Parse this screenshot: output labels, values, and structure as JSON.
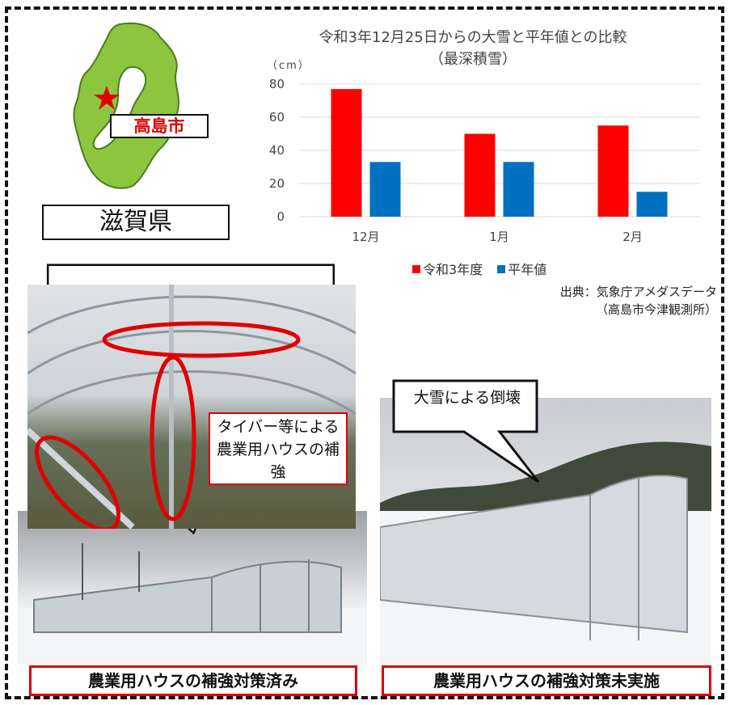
{
  "map": {
    "prefecture_label": "滋賀県",
    "city_label": "高島市",
    "colors": {
      "land": "#8cc63f",
      "star": "#e00000",
      "lake": "#ffffff"
    }
  },
  "chart_data": {
    "type": "bar",
    "title": "令和3年12月25日からの大雪と平年値との比較",
    "subtitle": "（最深積雪）",
    "ylabel": "（cm）",
    "categories": [
      "12月",
      "1月",
      "2月"
    ],
    "series": [
      {
        "name": "令和3年度",
        "values": [
          77,
          50,
          55
        ],
        "color": "#ff0000"
      },
      {
        "name": "平年値",
        "values": [
          33,
          33,
          15
        ],
        "color": "#0070c0"
      }
    ],
    "ylim": [
      0,
      80
    ],
    "yticks": [
      "0",
      "20",
      "40",
      "60",
      "80"
    ],
    "grid": true,
    "legend_position": "bottom"
  },
  "source": {
    "line1": "出典：気象庁アメダスデータ",
    "line2": "（高島市今津観測所）"
  },
  "photos": {
    "reinforcement_note": "タイバー等による農業用ハウスの補強",
    "collapse_note": "大雪による倒壊",
    "caption_left": "農業用ハウスの補強対策済み",
    "caption_right": "農業用ハウスの補強対策未実施"
  }
}
